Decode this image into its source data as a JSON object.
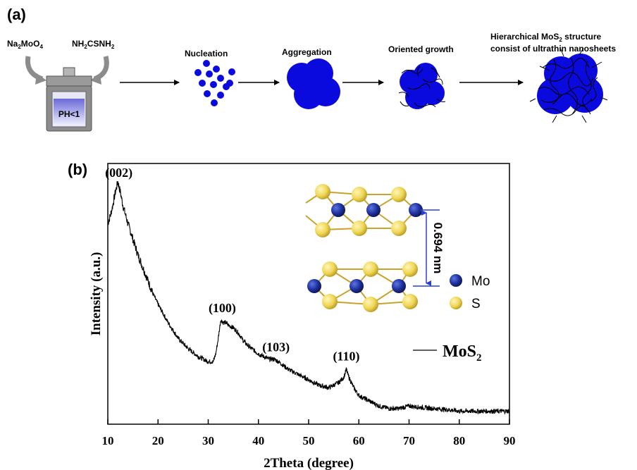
{
  "panel_a": {
    "label": "(a)",
    "reagent_1": {
      "text": "Na",
      "sub1": "2",
      "mid": "MoO",
      "sub2": "4"
    },
    "reagent_2": {
      "text": "NH",
      "sub1": "2",
      "mid": "CSNH",
      "sub2": "2"
    },
    "vessel_label": "PH<1",
    "steps": [
      "Nucleation",
      "Aggregation",
      "Oriented growth"
    ],
    "final_line1": {
      "pre": "Hierarchical MoS",
      "sub": "2",
      "post": " structure"
    },
    "final_line2": "consist of ultrathin nanosheets",
    "colors": {
      "blue": "#0a0adf",
      "vessel_gray": "#8c8c8c",
      "vessel_liquid": "#d8d8f4"
    }
  },
  "panel_b": {
    "label": "(b)",
    "interlayer_label": "0.694 nm",
    "atom_legend": [
      {
        "symbol": "Mo",
        "color": "#1c2f9c"
      },
      {
        "symbol": "S",
        "color": "#f2dc5d"
      }
    ],
    "series_legend": {
      "pre": "MoS",
      "sub": "2"
    }
  },
  "chart_data": {
    "type": "line",
    "xlabel": "2Theta (degree)",
    "ylabel": "Intensity (a.u.)",
    "xlim": [
      10,
      90
    ],
    "xticks": [
      10,
      20,
      30,
      40,
      50,
      60,
      70,
      80,
      90
    ],
    "ylim": [
      0,
      100
    ],
    "y_tick_labels": false,
    "grid": false,
    "legend_position": "right",
    "series": [
      {
        "name": "MoS2",
        "color": "#000000",
        "x": [
          10,
          10.5,
          11,
          11.5,
          12,
          12.5,
          13,
          14,
          15,
          16,
          17,
          18,
          19,
          20,
          22,
          24,
          26,
          28,
          29,
          30,
          30.5,
          31,
          31.5,
          32,
          32.5,
          33,
          33.5,
          34,
          35,
          36,
          37,
          38,
          40,
          42,
          43,
          44,
          46,
          48,
          50,
          52,
          54,
          55,
          56,
          57,
          57.5,
          58,
          59,
          60,
          62,
          64,
          66,
          68,
          70,
          72,
          75,
          78,
          80,
          85,
          90
        ],
        "y": [
          77,
          80,
          84,
          89,
          93,
          89,
          84,
          77,
          71,
          65,
          60,
          55,
          50,
          46,
          39,
          33,
          29,
          26,
          25,
          24,
          24,
          24,
          27,
          33,
          40,
          39,
          39,
          38,
          37,
          35,
          32,
          30,
          27,
          25,
          25,
          24,
          21,
          19,
          17,
          15,
          14,
          15,
          16,
          18,
          21,
          18,
          14,
          11,
          9,
          7,
          6,
          6,
          7,
          6.5,
          6,
          5.5,
          5,
          5,
          5
        ]
      }
    ],
    "peak_labels": [
      {
        "text": "(002)",
        "x": 12.2
      },
      {
        "text": "(100)",
        "x": 32.8
      },
      {
        "text": "(103)",
        "x": 43.5
      },
      {
        "text": "(110)",
        "x": 57.5
      }
    ]
  }
}
